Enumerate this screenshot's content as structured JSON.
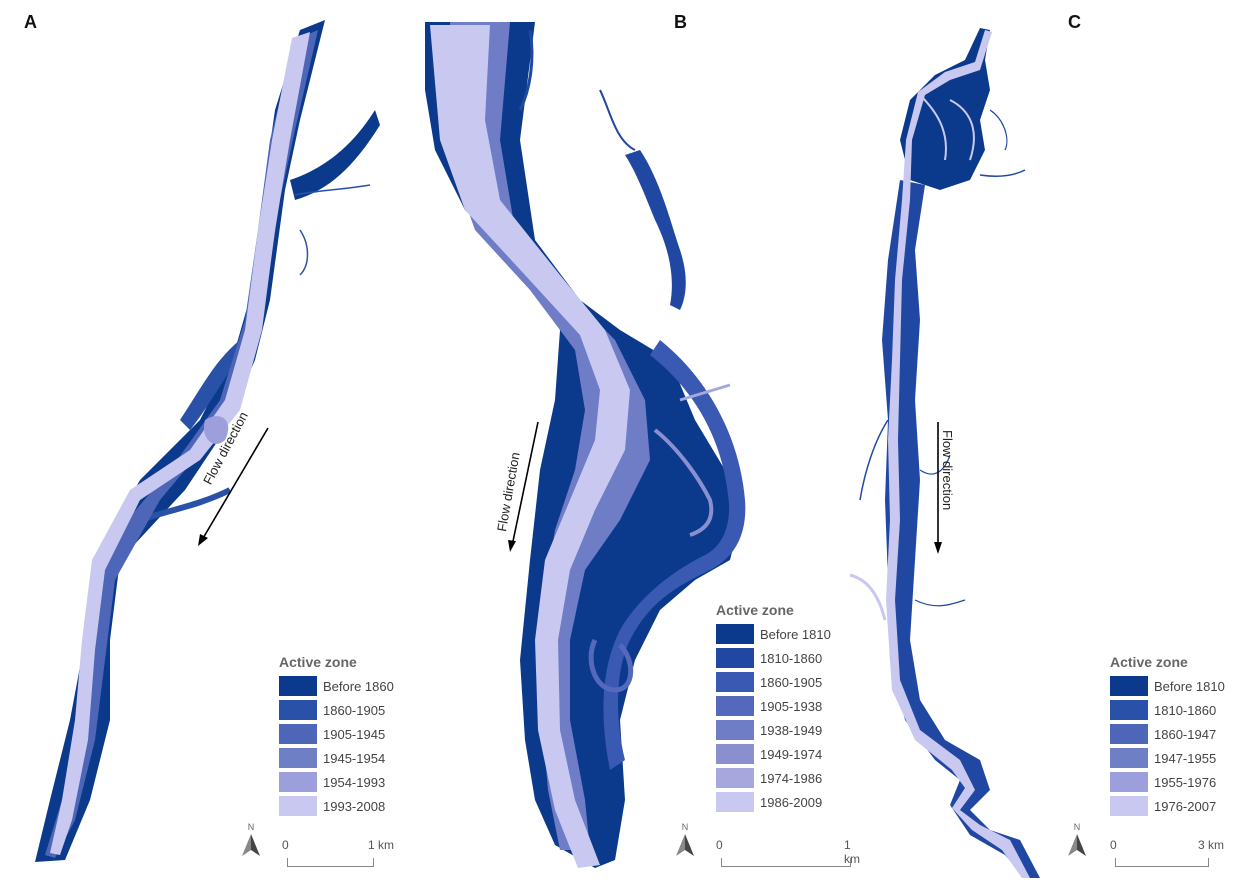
{
  "panels": [
    {
      "letter": "A",
      "legend_title": "Active zone",
      "legend": [
        "Before 1860",
        "1860-1905",
        "1905-1945",
        "1945-1954",
        "1954-1993",
        "1993-2008"
      ],
      "flow_label": "Flow direction",
      "scale_zero": "0",
      "scale_end": "1 km",
      "north_label": "N"
    },
    {
      "letter": "B",
      "legend_title": "Active zone",
      "legend": [
        "Before 1810",
        "1810-1860",
        "1860-1905",
        "1905-1938",
        "1938-1949",
        "1949-1974",
        "1974-1986",
        "1986-2009"
      ],
      "flow_label": "Flow direction",
      "scale_zero": "0",
      "scale_end": "1 km",
      "north_label": "N"
    },
    {
      "letter": "C",
      "legend_title": "Active zone",
      "legend": [
        "Before 1810",
        "1810-1860",
        "1860-1947",
        "1947-1955",
        "1955-1976",
        "1976-2007"
      ],
      "flow_label": "Flow direction",
      "scale_zero": "0",
      "scale_end": "3 km",
      "north_label": "N"
    }
  ],
  "colors": {
    "six_class": [
      "#0b3a8c",
      "#2a51a8",
      "#4e66b8",
      "#6f7fc6",
      "#9d9fdc",
      "#c8c8f0"
    ],
    "eight_class": [
      "#0b3a8c",
      "#2048a2",
      "#3a59b2",
      "#5569bc",
      "#6f7cc6",
      "#8a8fd0",
      "#a7a7de",
      "#c8c8f0"
    ]
  }
}
